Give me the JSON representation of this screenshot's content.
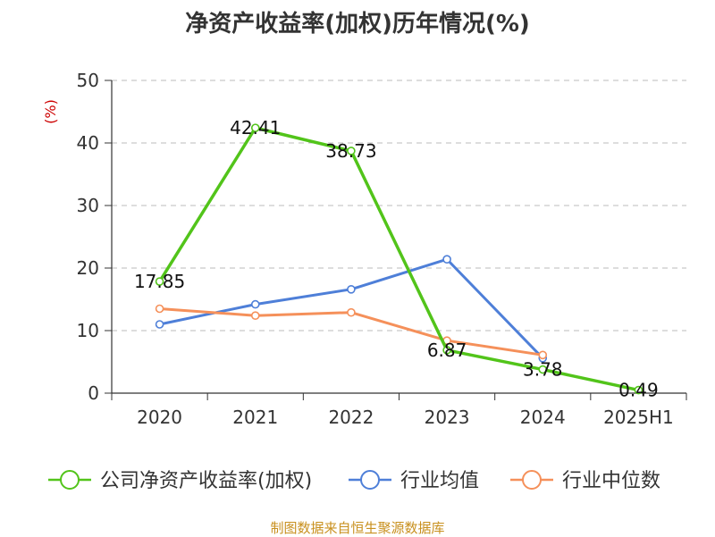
{
  "title": "净资产收益率(加权)历年情况(%)",
  "source": "制图数据来自恒生聚源数据库",
  "colors": {
    "company": "#52c41a",
    "avg": "#4e7fd8",
    "median": "#f5905a",
    "unit": "#cc0000",
    "grid": "#bbbbbb",
    "axis": "#333333"
  },
  "chart_data": {
    "type": "line",
    "title": "净资产收益率(加权)历年情况(%)",
    "ylabel": "(%)",
    "xlabel": "",
    "categories": [
      "2020",
      "2021",
      "2022",
      "2023",
      "2024",
      "2025H1"
    ],
    "ylim": [
      0,
      50
    ],
    "yticks": [
      0,
      10,
      20,
      30,
      40,
      50
    ],
    "grid": true,
    "legend": "bottom",
    "series": [
      {
        "name": "公司净资产收益率(加权)",
        "color": "#52c41a",
        "values": [
          17.85,
          42.41,
          38.73,
          6.87,
          3.78,
          0.49
        ],
        "labels": [
          "17.85",
          "42.41",
          "38.73",
          "6.87",
          "3.78",
          "0.49"
        ]
      },
      {
        "name": "行业均值",
        "color": "#4e7fd8",
        "values": [
          11.0,
          14.2,
          16.6,
          21.4,
          5.6,
          null
        ]
      },
      {
        "name": "行业中位数",
        "color": "#f5905a",
        "values": [
          13.5,
          12.4,
          12.9,
          8.4,
          6.1,
          null
        ]
      }
    ]
  }
}
